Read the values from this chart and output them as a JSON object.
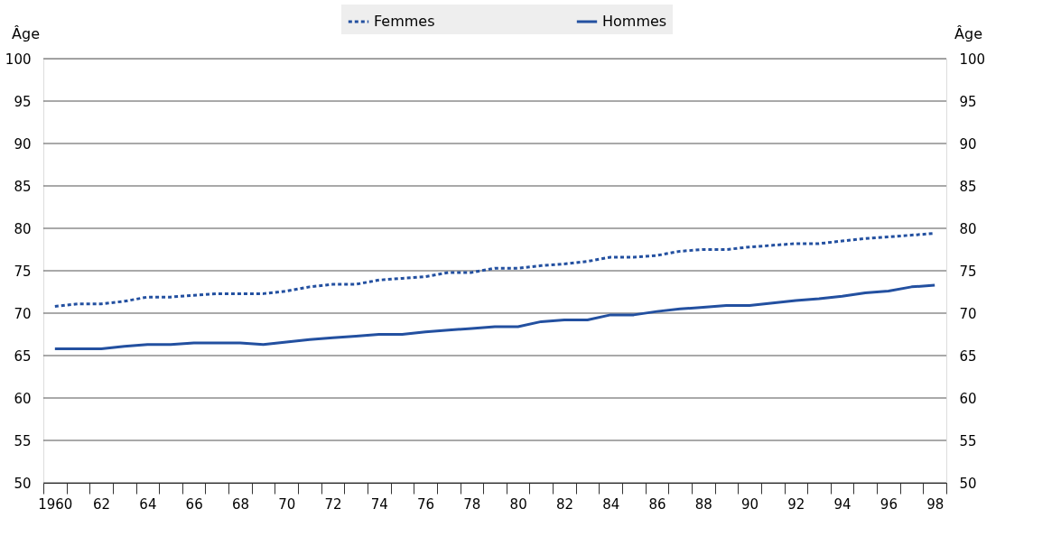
{
  "chart_data": {
    "type": "line",
    "categories": [
      "1960",
      null,
      "62",
      null,
      "64",
      null,
      "66",
      null,
      "68",
      null,
      "70",
      null,
      "72",
      null,
      "74",
      null,
      "76",
      null,
      "78",
      null,
      "80",
      null,
      "82",
      null,
      "84",
      null,
      "86",
      null,
      "88",
      null,
      "90",
      null,
      "92",
      null,
      "94",
      null,
      "96",
      null,
      "98"
    ],
    "series": [
      {
        "name": "Femmes",
        "color": "#2350a0",
        "line_style": "dotted",
        "values": [
          70.8,
          71.1,
          71.1,
          71.4,
          71.9,
          71.9,
          72.1,
          72.3,
          72.3,
          72.3,
          72.6,
          73.1,
          73.4,
          73.4,
          73.9,
          74.1,
          74.3,
          74.8,
          74.8,
          75.3,
          75.3,
          75.6,
          75.8,
          76.1,
          76.6,
          76.6,
          76.8,
          77.3,
          77.5,
          77.5,
          77.8,
          78.0,
          78.2,
          78.2,
          78.5,
          78.8,
          79.0,
          79.2,
          79.4
        ]
      },
      {
        "name": "Hommes",
        "color": "#2350a0",
        "line_style": "solid",
        "values": [
          65.8,
          65.8,
          65.8,
          66.1,
          66.3,
          66.3,
          66.5,
          66.5,
          66.5,
          66.3,
          66.6,
          66.9,
          67.1,
          67.3,
          67.5,
          67.5,
          67.8,
          68.0,
          68.2,
          68.4,
          68.4,
          69.0,
          69.2,
          69.2,
          69.8,
          69.8,
          70.2,
          70.5,
          70.7,
          70.9,
          70.9,
          71.2,
          71.5,
          71.7,
          72.0,
          72.4,
          72.6,
          73.1,
          73.3
        ]
      }
    ],
    "ylabel": "Âge",
    "y2label": "Âge",
    "ylim": [
      50,
      100
    ],
    "yticks": [
      50,
      55,
      60,
      65,
      70,
      75,
      80,
      85,
      90,
      95,
      100
    ],
    "y2lim": [
      50,
      100
    ],
    "y2ticks": [
      50,
      55,
      60,
      65,
      70,
      75,
      80,
      85,
      90,
      95,
      100
    ],
    "grid": "y",
    "legend": "top",
    "marker": "none"
  }
}
